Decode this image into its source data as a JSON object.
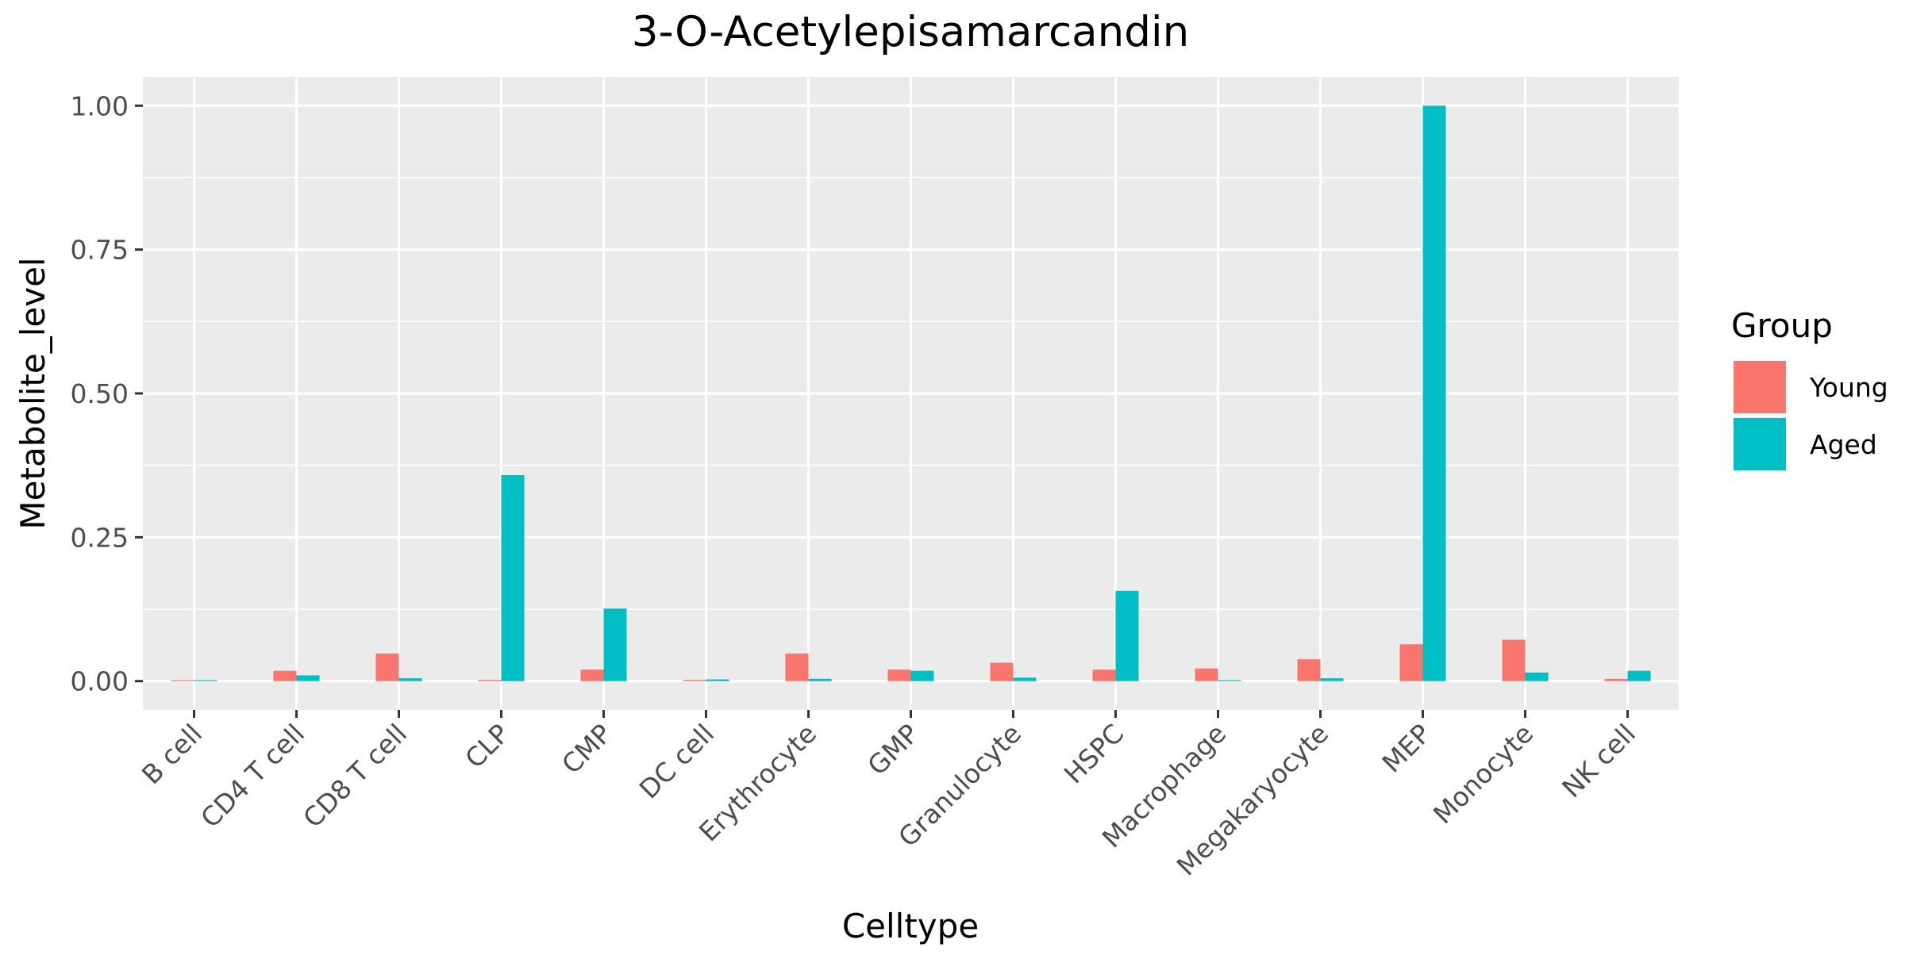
{
  "chart_data": {
    "type": "bar",
    "title": "3-O-Acetylepisamarcandin",
    "xlabel": "Celltype",
    "ylabel": "Metabolite_level",
    "ylim": [
      -0.05,
      1.05
    ],
    "yticks": [
      0.0,
      0.25,
      0.5,
      0.75,
      1.0
    ],
    "ytick_labels": [
      "0.00",
      "0.25",
      "0.50",
      "0.75",
      "1.00"
    ],
    "grid": true,
    "legend": {
      "title": "Group",
      "placement": "right"
    },
    "categories": [
      "B cell",
      "CD4 T cell",
      "CD8 T cell",
      "CLP",
      "CMP",
      "DC cell",
      "Erythrocyte",
      "GMP",
      "Granulocyte",
      "HSPC",
      "Macrophage",
      "Megakaryocyte",
      "MEP",
      "Monocyte",
      "NK cell"
    ],
    "series": [
      {
        "name": "Young",
        "color": "#F8766D",
        "values": [
          0.0,
          0.018,
          0.048,
          0.002,
          0.02,
          0.002,
          0.048,
          0.02,
          0.032,
          0.02,
          0.022,
          0.038,
          0.064,
          0.072,
          0.004
        ]
      },
      {
        "name": "Aged",
        "color": "#00BFC4",
        "values": [
          0.001,
          0.01,
          0.005,
          0.358,
          0.126,
          0.003,
          0.004,
          0.018,
          0.006,
          0.157,
          0.0,
          0.005,
          1.0,
          0.015,
          0.018
        ]
      }
    ]
  }
}
